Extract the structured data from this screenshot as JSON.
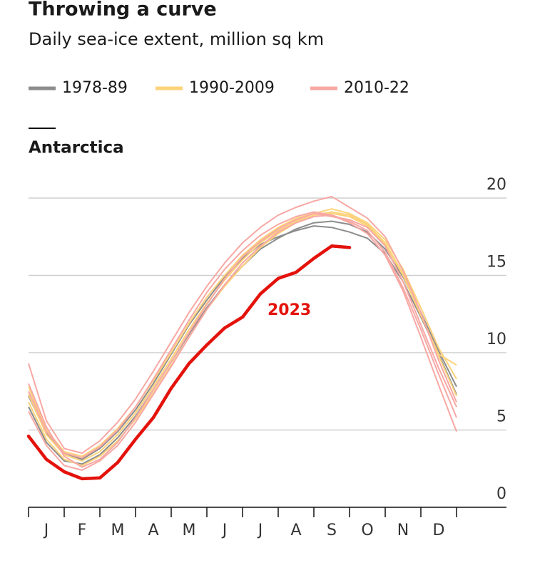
{
  "chart_data": {
    "type": "line",
    "title": "Throwing a curve",
    "subtitle": "Daily sea-ice extent, million sq km",
    "panel_title": "Antarctica",
    "x": [
      0,
      0.5,
      1,
      1.5,
      2,
      2.5,
      3,
      3.5,
      4,
      4.5,
      5,
      5.5,
      6,
      6.5,
      7,
      7.5,
      8,
      8.5,
      9,
      9.5,
      10,
      10.5,
      11,
      11.5,
      12
    ],
    "xlim": [
      0,
      12
    ],
    "xticks": [
      0,
      1,
      2,
      3,
      4,
      5,
      6,
      7,
      8,
      9,
      10,
      11,
      12
    ],
    "months": [
      "J",
      "F",
      "M",
      "A",
      "M",
      "J",
      "J",
      "A",
      "S",
      "O",
      "N",
      "D"
    ],
    "ylim": [
      0,
      20
    ],
    "yticks": [
      0,
      5,
      10,
      15,
      20
    ],
    "grid": true,
    "series": [
      {
        "name": "1978-89",
        "color": "#8c8c8c",
        "values": [
          [
            7.2,
            4.8,
            3.5,
            3.1,
            3.8,
            4.9,
            6.3,
            8.0,
            9.9,
            11.8,
            13.4,
            14.9,
            16.1,
            17.0,
            17.5,
            17.9,
            18.2,
            18.1,
            17.8,
            17.4,
            16.4,
            14.6,
            12.3,
            9.9,
            7.3
          ],
          [
            6.5,
            4.2,
            3.0,
            2.8,
            3.4,
            4.5,
            5.9,
            7.6,
            9.4,
            11.2,
            12.9,
            14.4,
            15.6,
            16.7,
            17.4,
            18.0,
            18.4,
            18.5,
            18.3,
            17.8,
            16.7,
            14.9,
            12.6,
            10.1,
            7.8
          ]
        ]
      },
      {
        "name": "1990-2009",
        "color": "#fcd27a",
        "values": [
          [
            7.8,
            5.0,
            3.6,
            3.3,
            4.0,
            5.1,
            6.5,
            8.2,
            10.0,
            11.9,
            13.6,
            15.0,
            16.3,
            17.3,
            18.1,
            18.7,
            19.0,
            19.3,
            19.0,
            18.4,
            17.3,
            15.4,
            12.9,
            10.3,
            8.3
          ],
          [
            6.8,
            4.4,
            3.1,
            2.7,
            3.3,
            4.3,
            5.7,
            7.4,
            9.2,
            11.0,
            12.8,
            14.3,
            15.6,
            16.8,
            17.7,
            18.4,
            18.9,
            19.1,
            18.9,
            18.3,
            17.1,
            15.1,
            12.5,
            9.8,
            7.2
          ],
          [
            7.3,
            4.7,
            3.4,
            3.0,
            3.6,
            4.7,
            6.1,
            7.8,
            9.6,
            11.5,
            13.2,
            14.7,
            16.0,
            17.1,
            17.9,
            18.5,
            18.9,
            19.0,
            18.8,
            18.2,
            17.0,
            15.0,
            12.4,
            9.9,
            9.2
          ]
        ]
      },
      {
        "name": "2010-22",
        "color": "#f7a8a4",
        "values": [
          [
            9.3,
            5.6,
            3.8,
            3.5,
            4.3,
            5.5,
            7.0,
            8.8,
            10.7,
            12.6,
            14.3,
            15.8,
            17.1,
            18.1,
            18.9,
            19.4,
            19.8,
            20.1,
            19.4,
            18.7,
            17.5,
            15.3,
            12.6,
            9.5,
            6.8
          ],
          [
            6.2,
            4.0,
            2.7,
            2.4,
            3.0,
            4.0,
            5.5,
            7.3,
            9.1,
            11.0,
            12.8,
            14.4,
            15.8,
            16.9,
            17.8,
            18.4,
            18.8,
            18.9,
            18.5,
            17.9,
            16.5,
            14.2,
            11.5,
            8.6,
            5.8
          ],
          [
            7.5,
            4.9,
            3.5,
            3.2,
            3.9,
            5.0,
            6.5,
            8.3,
            10.2,
            12.1,
            13.9,
            15.4,
            16.6,
            17.6,
            18.3,
            18.8,
            19.1,
            18.9,
            18.4,
            17.7,
            16.3,
            14.0,
            11.0,
            7.9,
            4.9
          ],
          [
            8.0,
            5.2,
            3.3,
            2.6,
            3.1,
            4.2,
            5.8,
            7.6,
            9.4,
            11.3,
            13.1,
            14.8,
            16.2,
            17.2,
            18.0,
            18.6,
            19.0,
            18.8,
            18.6,
            18.1,
            16.9,
            14.6,
            11.8,
            9.0,
            6.5
          ]
        ]
      }
    ],
    "highlight": {
      "name": "2023",
      "color": "#e3120b",
      "values": [
        4.6,
        3.1,
        2.3,
        1.85,
        1.9,
        2.9,
        4.4,
        5.8,
        7.7,
        9.3,
        10.5,
        11.6,
        12.3,
        13.8,
        14.8,
        15.2,
        16.1,
        16.9,
        16.8,
        null,
        null,
        null,
        null,
        null,
        null
      ]
    }
  }
}
